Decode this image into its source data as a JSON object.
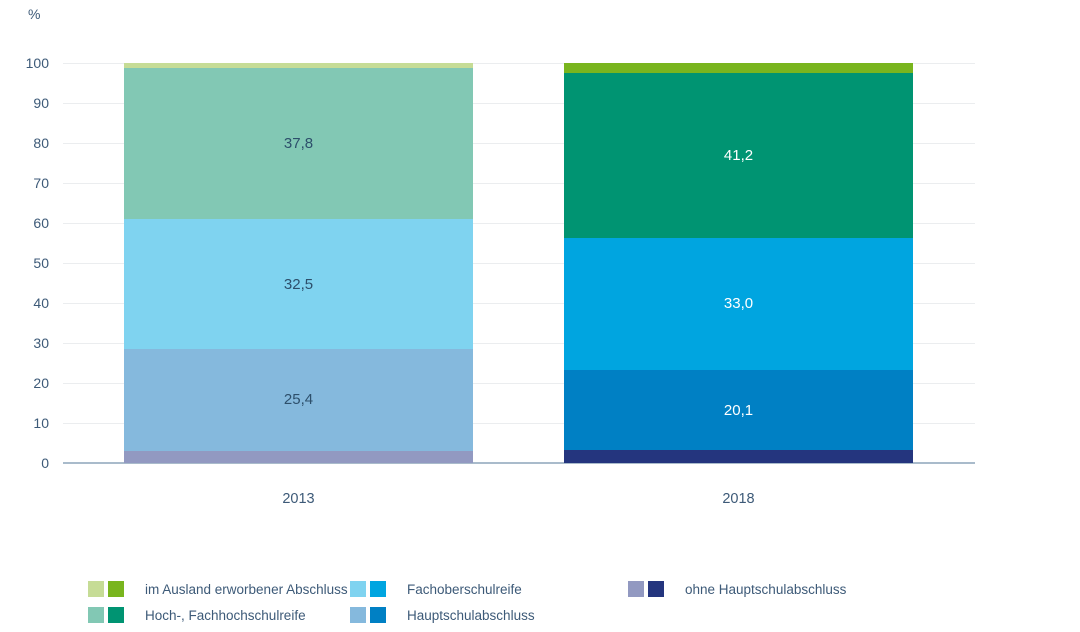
{
  "chart_data": {
    "type": "bar",
    "stacked": true,
    "unit_label": "%",
    "categories": [
      "2013",
      "2018"
    ],
    "ylim": [
      0,
      100
    ],
    "yticks": [
      0,
      10,
      20,
      30,
      40,
      50,
      60,
      70,
      80,
      90,
      100
    ],
    "grid": "horizontal",
    "series": [
      {
        "name": "ohne Hauptschulabschluss",
        "values": [
          3.1,
          3.2
        ],
        "labels": [
          "",
          ""
        ],
        "colors": [
          "#9299c1",
          "#24357e"
        ]
      },
      {
        "name": "Hauptschulabschluss",
        "values": [
          25.4,
          20.1
        ],
        "labels": [
          "25,4",
          "20,1"
        ],
        "colors": [
          "#85b9dd",
          "#0080c4"
        ]
      },
      {
        "name": "Fachoberschulreife",
        "values": [
          32.5,
          33.0
        ],
        "labels": [
          "32,5",
          "33,0"
        ],
        "colors": [
          "#7fd3f0",
          "#00a5e0"
        ]
      },
      {
        "name": "Hoch-, Fachhochschulreife",
        "values": [
          37.8,
          41.2
        ],
        "labels": [
          "37,8",
          "41,2"
        ],
        "colors": [
          "#82c8b4",
          "#009472"
        ]
      },
      {
        "name": "im Ausland erworbener Abschluss",
        "values": [
          1.2,
          2.5
        ],
        "labels": [
          "",
          ""
        ],
        "colors": [
          "#c6dc96",
          "#79b51e"
        ]
      }
    ],
    "value_label_colors": [
      "#2d4f6b",
      "#ffffff"
    ],
    "axis_text_color": "#3d5a78",
    "baseline_color": "#a9bbcb",
    "gridline_color": "#ebedef",
    "legend_position": "bottom",
    "legend_columns": [
      [
        4,
        3
      ],
      [
        2,
        1
      ],
      [
        0
      ]
    ]
  }
}
